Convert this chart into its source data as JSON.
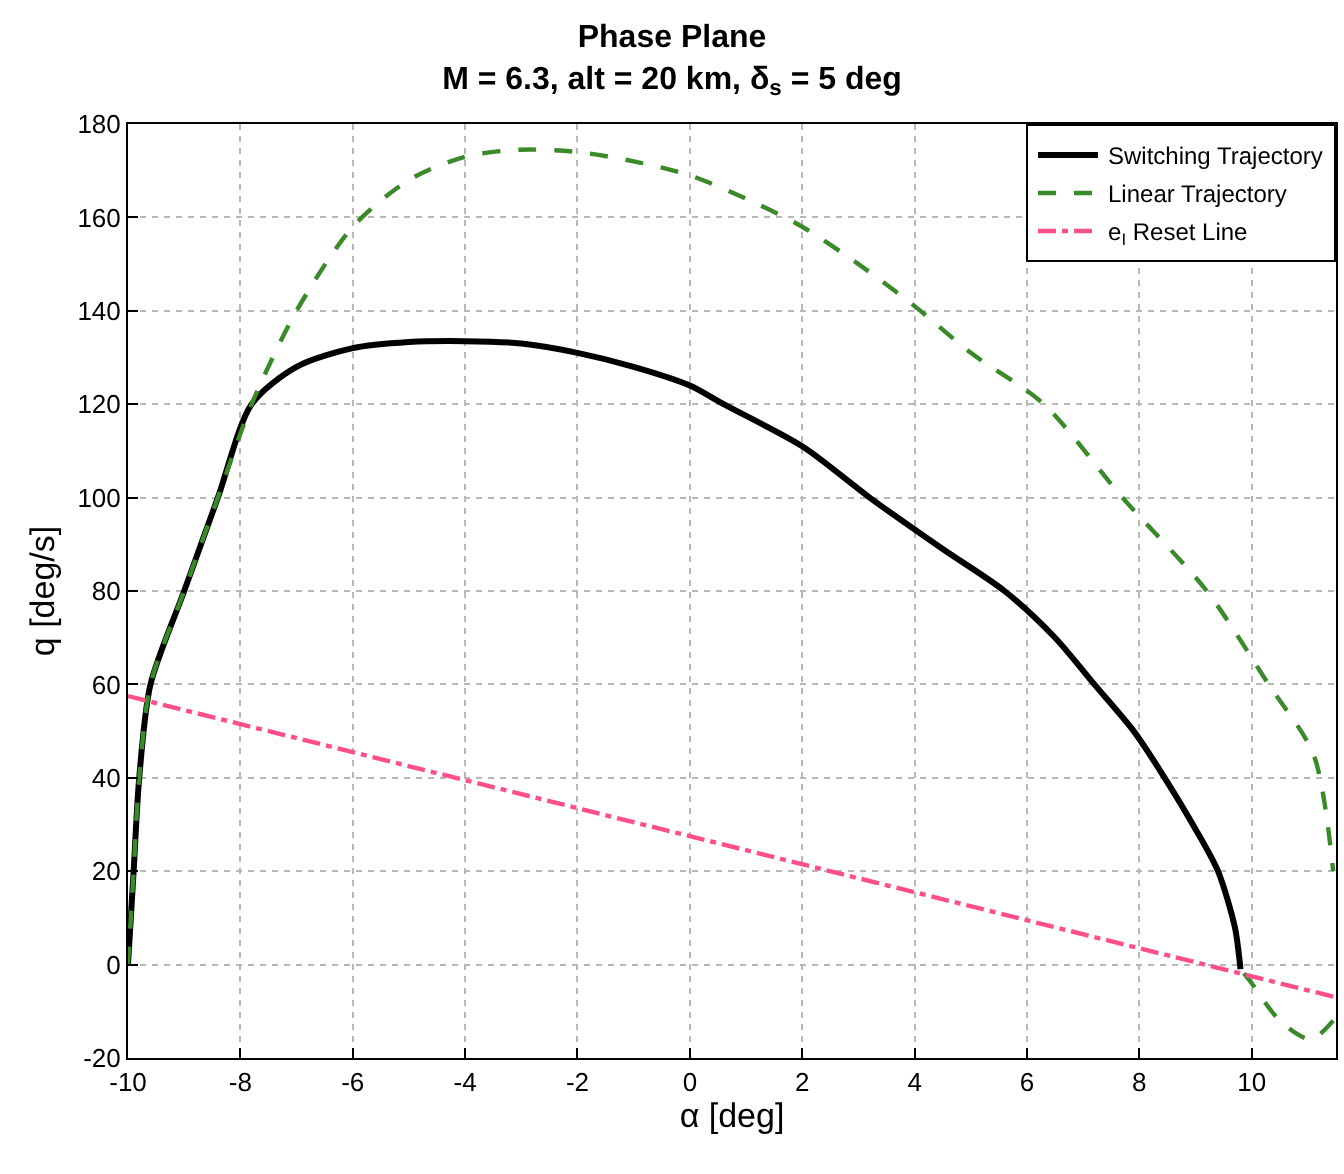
{
  "chart_data": {
    "type": "line",
    "title": "Phase Plane",
    "subtitle": "M = 6.3, alt = 20 km, δ$_{s}$ = 5 deg",
    "xlabel": "α [deg]",
    "ylabel": "q [deg/s]",
    "xlim": [
      -10,
      11.5
    ],
    "xticks": [
      -10,
      -8,
      -6,
      -4,
      -2,
      0,
      2,
      4,
      6,
      8,
      10
    ],
    "ylim": [
      -20,
      180
    ],
    "yticks": [
      -20,
      0,
      20,
      40,
      60,
      80,
      100,
      120,
      140,
      160,
      180
    ],
    "grid": true,
    "legend": "top right",
    "series": [
      {
        "name": "Switching Trajectory",
        "color": "#000000",
        "line_style": "solid",
        "x": [
          -10,
          -9.9,
          -9.8,
          -9.6,
          -9,
          -8.4,
          -7.8,
          -7,
          -6,
          -5,
          -4,
          -3,
          -2,
          -1,
          0,
          0.6,
          2,
          3.2,
          4.5,
          5.6,
          6.5,
          7.2,
          7.9,
          8.45,
          9,
          9.4,
          9.7,
          9.8
        ],
        "values": [
          0,
          20,
          40,
          60,
          80,
          100,
          120,
          128,
          132,
          133.3,
          133.5,
          133,
          131,
          128,
          124,
          120,
          111,
          100,
          89,
          80,
          70,
          60,
          50,
          40,
          29,
          20,
          8,
          -1
        ]
      },
      {
        "name": "Linear Trajectory",
        "color": "#3a8a2a",
        "line_style": "dashed",
        "x": [
          -10,
          -9.9,
          -9.8,
          -9.6,
          -9,
          -8.4,
          -7.8,
          -7,
          -6,
          -5,
          -4,
          -3,
          -2,
          -1,
          0,
          1,
          2,
          3,
          4,
          5,
          6.3,
          7.7,
          9.2,
          10.3,
          11.1,
          11.45,
          null,
          11.45,
          11.05,
          10.5,
          10,
          9.8
        ],
        "values": [
          0,
          20,
          40,
          60,
          80,
          100,
          120,
          140,
          158,
          168,
          173,
          174.5,
          174,
          172,
          169,
          164,
          158,
          150,
          141,
          131,
          120,
          100,
          80,
          60,
          45,
          20,
          null,
          -12,
          -16,
          -12,
          -4,
          -1
        ]
      },
      {
        "name": "e$_{I}$ Reset Line",
        "color": "#ff4f8b",
        "line_style": "dashdot",
        "x": [
          -10,
          11.5
        ],
        "values": [
          57.5,
          -7
        ]
      }
    ]
  }
}
